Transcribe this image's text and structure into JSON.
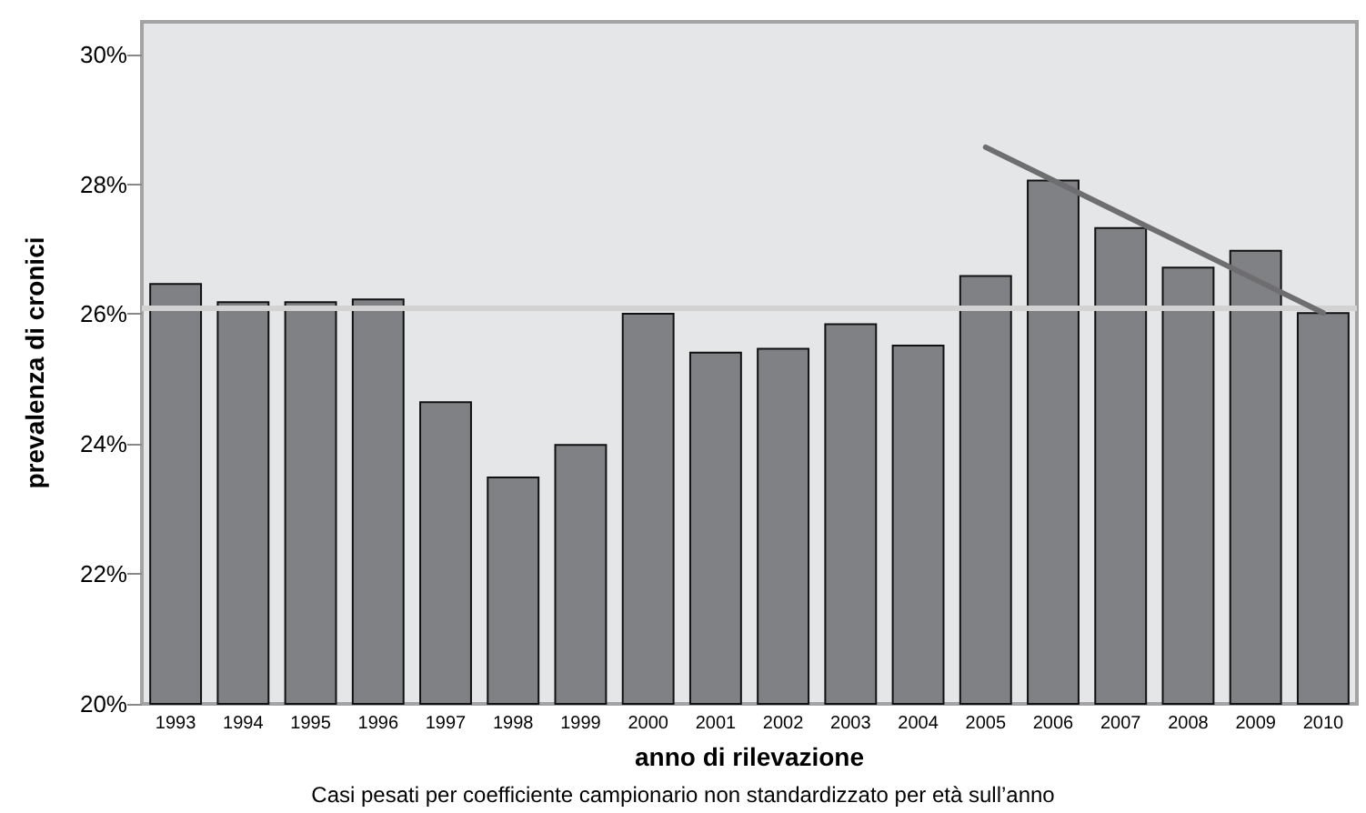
{
  "chart_data": {
    "type": "bar",
    "xlabel": "anno di rilevazione",
    "ylabel": "prevalenza di cronici",
    "categories": [
      "1993",
      "1994",
      "1995",
      "1996",
      "1997",
      "1998",
      "1999",
      "2000",
      "2001",
      "2002",
      "2003",
      "2004",
      "2005",
      "2006",
      "2007",
      "2008",
      "2009",
      "2010"
    ],
    "series": [
      {
        "color": "#808184",
        "values": [
          26.48,
          26.2,
          26.2,
          26.24,
          24.66,
          23.5,
          24.0,
          26.02,
          25.42,
          25.48,
          25.86,
          25.53,
          26.6,
          28.07,
          27.34,
          26.73,
          26.99,
          26.03
        ]
      },
      {
        "type": "line",
        "color": "#6e6e70",
        "values": [
          null,
          null,
          null,
          null,
          null,
          null,
          null,
          null,
          null,
          null,
          null,
          null,
          28.57,
          28.06,
          27.55,
          27.04,
          26.53,
          26.02
        ]
      }
    ],
    "ylim": [
      20,
      30.5
    ],
    "yticks": [
      {
        "value": 20,
        "label": "20%"
      },
      {
        "value": 22,
        "label": "22%"
      },
      {
        "value": 24,
        "label": "24%"
      },
      {
        "value": 26,
        "label": "26%"
      },
      {
        "value": 28,
        "label": "28%"
      },
      {
        "value": 30,
        "label": "30%"
      }
    ],
    "ref_lines": [
      {
        "axis": "y",
        "value": 26.1,
        "color": "#d2d2d2"
      }
    ],
    "grid": false,
    "marker": "none",
    "annotations": [
      "Casi pesati per coefficiente campionario non standardizzato per età sull’anno"
    ]
  }
}
